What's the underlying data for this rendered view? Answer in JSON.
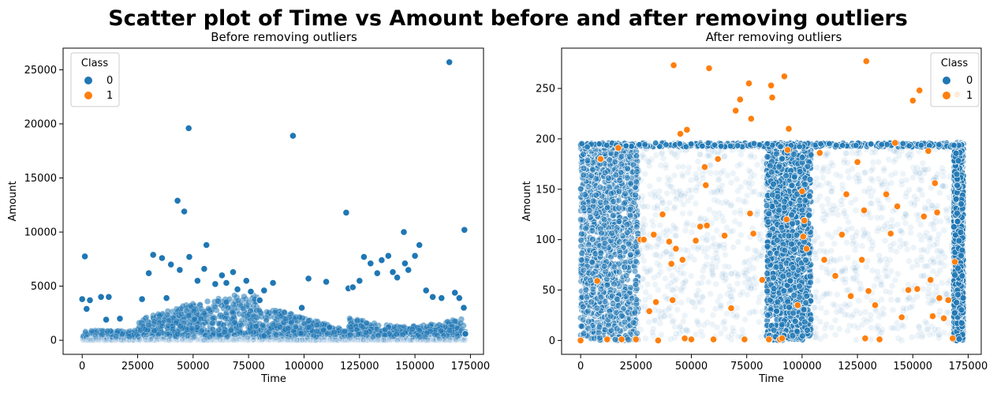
{
  "figure": {
    "title": "Scatter plot of Time vs Amount before and after removing outliers"
  },
  "colors": {
    "class_0": "#1f77b4",
    "class_1": "#ff7f0e"
  },
  "chart_data": [
    {
      "type": "scatter",
      "title": "Before removing outliers",
      "xlabel": "Time",
      "ylabel": "Amount",
      "xlim": [
        -8600,
        180900
      ],
      "ylim": [
        -1300,
        27000
      ],
      "xticks": [
        0,
        25000,
        50000,
        75000,
        100000,
        125000,
        150000,
        175000
      ],
      "xtick_labels": [
        "0",
        "25000",
        "50000",
        "75000",
        "100000",
        "125000",
        "150000",
        "175000"
      ],
      "yticks": [
        0,
        5000,
        10000,
        15000,
        20000,
        25000
      ],
      "ytick_labels": [
        "0",
        "5000",
        "10000",
        "15000",
        "20000",
        "25000"
      ],
      "grid": false,
      "legend": {
        "title": "Class",
        "placement": "top-left",
        "entries": [
          "0",
          "1"
        ]
      },
      "series": [
        {
          "name": "0",
          "color": "#1f77b4",
          "x": [
            0,
            1200,
            2000,
            3500,
            8500,
            10800,
            12000,
            17000,
            27000,
            30000,
            32000,
            36000,
            38000,
            40000,
            43000,
            44000,
            46000,
            48000,
            48300,
            52000,
            55000,
            56000,
            60000,
            63000,
            65000,
            68000,
            70000,
            74000,
            76000,
            80000,
            82000,
            86000,
            95000,
            99000,
            102000,
            110000,
            119000,
            120000,
            122000,
            125000,
            127000,
            130000,
            133000,
            135000,
            138000,
            140000,
            142000,
            145000,
            145500,
            147000,
            150000,
            152000,
            155000,
            158000,
            162000,
            165500,
            168000,
            170000,
            172000,
            172300,
            172700
          ],
          "y": [
            3800,
            7750,
            2900,
            3700,
            4000,
            1900,
            4000,
            2000,
            3800,
            6200,
            7900,
            7600,
            3900,
            7000,
            12900,
            6500,
            11900,
            19600,
            7700,
            5500,
            6600,
            8800,
            5200,
            6000,
            5300,
            6300,
            4700,
            5500,
            4500,
            3700,
            4600,
            5300,
            18900,
            3000,
            5700,
            5400,
            11800,
            4800,
            4900,
            5500,
            7700,
            7100,
            6200,
            7400,
            7800,
            6300,
            5800,
            10000,
            7100,
            6500,
            7800,
            8800,
            4600,
            4000,
            3900,
            25700,
            4400,
            3900,
            3000,
            10200,
            600
          ]
        },
        {
          "name": "1",
          "color": "#ff7f0e",
          "x": [],
          "y": []
        }
      ]
    },
    {
      "type": "scatter",
      "title": "After removing outliers",
      "xlabel": "Time",
      "ylabel": "Amount",
      "xlim": [
        -8600,
        180900
      ],
      "ylim": [
        -13.8,
        290
      ],
      "xticks": [
        0,
        25000,
        50000,
        75000,
        100000,
        125000,
        150000,
        175000
      ],
      "xtick_labels": [
        "0",
        "25000",
        "50000",
        "75000",
        "100000",
        "125000",
        "150000",
        "175000"
      ],
      "yticks": [
        0,
        50,
        100,
        150,
        200,
        250
      ],
      "ytick_labels": [
        "0",
        "50",
        "100",
        "150",
        "200",
        "250"
      ],
      "grid": false,
      "legend": {
        "title": "Class",
        "placement": "top-right",
        "entries": [
          "0",
          "1"
        ]
      },
      "series": [
        {
          "name": "0",
          "color": "#1f77b4",
          "x": [],
          "y": []
        },
        {
          "name": "1",
          "color": "#ff7f0e",
          "x": [
            0,
            7500,
            9000,
            12000,
            17000,
            18500,
            25000,
            27000,
            28500,
            31000,
            33000,
            34000,
            35000,
            37000,
            40000,
            41000,
            41500,
            42000,
            43000,
            45000,
            46000,
            47000,
            48000,
            50000,
            52000,
            54000,
            56000,
            56500,
            57000,
            58000,
            60000,
            62000,
            65000,
            68000,
            70000,
            72000,
            74000,
            76000,
            76500,
            77000,
            78000,
            82000,
            85000,
            86000,
            86500,
            90000,
            91000,
            92000,
            93000,
            93500,
            94000,
            98000,
            100000,
            100500,
            101000,
            102000,
            108000,
            110000,
            115000,
            118000,
            120000,
            122000,
            125000,
            127000,
            128000,
            128500,
            129000,
            130000,
            133000,
            135000,
            138000,
            140000,
            142000,
            143000,
            145000,
            148000,
            150000,
            152000,
            153000,
            155000,
            157000,
            158000,
            159000,
            160000,
            161000,
            162000,
            164000,
            166000,
            168000,
            169000,
            170000
          ],
          "y": [
            0,
            59,
            180,
            1,
            191,
            1,
            1,
            100,
            100,
            29,
            105,
            38,
            0,
            125,
            98,
            76,
            40,
            273,
            91,
            205,
            80,
            2,
            209,
            1,
            99,
            113,
            172,
            154,
            114,
            270,
            1,
            180,
            104,
            32,
            228,
            239,
            1,
            255,
            126,
            220,
            106,
            60,
            1,
            253,
            241,
            1,
            2,
            262,
            120,
            189,
            210,
            35,
            148,
            103,
            119,
            91,
            186,
            80,
            64,
            105,
            145,
            44,
            177,
            80,
            129,
            2,
            277,
            49,
            35,
            1,
            145,
            106,
            196,
            133,
            23,
            50,
            238,
            51,
            248,
            123,
            188,
            60,
            24,
            156,
            127,
            42,
            22,
            40,
            2,
            78,
            244
          ]
        }
      ]
    }
  ]
}
